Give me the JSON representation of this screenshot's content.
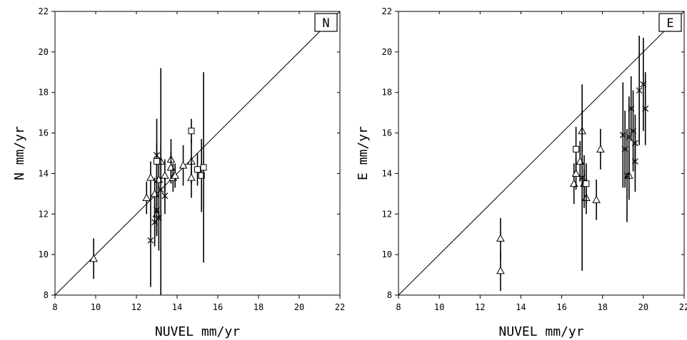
{
  "chart_data": [
    {
      "type": "scatter",
      "panel_label": "N",
      "xlabel": "NUVEL mm/yr",
      "ylabel": "N mm/yr",
      "xlim": [
        8,
        22
      ],
      "ylim": [
        8,
        22
      ],
      "x_ticks": [
        "8",
        "10",
        "12",
        "14",
        "16",
        "18",
        "20",
        "22"
      ],
      "y_ticks": [
        "8",
        "10",
        "12",
        "14",
        "16",
        "18",
        "20",
        "22"
      ],
      "reference_line": "y = x",
      "grid": false,
      "series": [
        {
          "marker": "triangle",
          "points": [
            {
              "x": 9.9,
              "y": 9.8,
              "err": 1.0
            },
            {
              "x": 12.5,
              "y": 12.8,
              "err": 0.8
            },
            {
              "x": 12.7,
              "y": 13.8,
              "err": 0.8
            },
            {
              "x": 12.9,
              "y": 13.0,
              "err": 0.8
            },
            {
              "x": 13.0,
              "y": 12.0,
              "err": 1.0
            },
            {
              "x": 13.1,
              "y": 13.7,
              "err": 0.9
            },
            {
              "x": 13.2,
              "y": 14.6,
              "err": 0.7
            },
            {
              "x": 13.4,
              "y": 13.9,
              "err": 0.8
            },
            {
              "x": 13.7,
              "y": 14.7,
              "err": 1.0
            },
            {
              "x": 13.7,
              "y": 14.3,
              "err": 0.8
            },
            {
              "x": 13.8,
              "y": 13.8,
              "err": 0.7
            },
            {
              "x": 13.9,
              "y": 13.9,
              "err": 0.6
            },
            {
              "x": 14.3,
              "y": 14.4,
              "err": 1.0
            },
            {
              "x": 14.7,
              "y": 14.6,
              "err": 1.1
            },
            {
              "x": 14.7,
              "y": 13.8,
              "err": 1.0
            }
          ]
        },
        {
          "marker": "cross",
          "points": [
            {
              "x": 12.7,
              "y": 10.7,
              "err": 2.3
            },
            {
              "x": 12.9,
              "y": 11.6,
              "err": 1.2
            },
            {
              "x": 13.0,
              "y": 14.9,
              "err": 1.8
            },
            {
              "x": 13.0,
              "y": 12.2,
              "err": 1.3
            },
            {
              "x": 13.1,
              "y": 11.8,
              "err": 1.6
            },
            {
              "x": 13.2,
              "y": 13.2,
              "err": 6.0
            },
            {
              "x": 13.4,
              "y": 12.9,
              "err": 0.9
            }
          ]
        },
        {
          "marker": "square",
          "points": [
            {
              "x": 13.0,
              "y": 14.6,
              "err": 0.9
            },
            {
              "x": 14.7,
              "y": 16.1,
              "err": 0.6
            },
            {
              "x": 15.0,
              "y": 14.2,
              "err": 0.8
            },
            {
              "x": 15.2,
              "y": 13.9,
              "err": 1.8
            },
            {
              "x": 15.3,
              "y": 14.3,
              "err": 4.7
            }
          ]
        }
      ]
    },
    {
      "type": "scatter",
      "panel_label": "E",
      "xlabel": "NUVEL mm/yr",
      "ylabel": "E mm/yr",
      "xlim": [
        8,
        22
      ],
      "ylim": [
        8,
        22
      ],
      "x_ticks": [
        "8",
        "10",
        "12",
        "14",
        "16",
        "18",
        "20",
        "22"
      ],
      "y_ticks": [
        "8",
        "10",
        "12",
        "14",
        "16",
        "18",
        "20",
        "22"
      ],
      "reference_line": "y = x",
      "grid": false,
      "series": [
        {
          "marker": "triangle",
          "points": [
            {
              "x": 13.0,
              "y": 10.8,
              "err": 1.0
            },
            {
              "x": 13.0,
              "y": 9.2,
              "err": 1.0
            },
            {
              "x": 16.6,
              "y": 13.5,
              "err": 1.0
            },
            {
              "x": 16.7,
              "y": 14.0,
              "err": 0.8
            },
            {
              "x": 16.9,
              "y": 14.6,
              "err": 1.0
            },
            {
              "x": 17.0,
              "y": 16.1,
              "err": 1.0
            },
            {
              "x": 17.1,
              "y": 13.5,
              "err": 0.7
            },
            {
              "x": 17.2,
              "y": 12.8,
              "err": 0.8
            },
            {
              "x": 17.7,
              "y": 12.7,
              "err": 1.0
            },
            {
              "x": 17.9,
              "y": 15.2,
              "err": 1.0
            },
            {
              "x": 19.3,
              "y": 13.9,
              "err": 1.2
            }
          ]
        },
        {
          "marker": "cross",
          "points": [
            {
              "x": 17.0,
              "y": 13.8,
              "err": 4.6
            },
            {
              "x": 17.1,
              "y": 13.6,
              "err": 1.3
            },
            {
              "x": 19.0,
              "y": 15.9,
              "err": 2.6
            },
            {
              "x": 19.1,
              "y": 15.2,
              "err": 1.9
            },
            {
              "x": 19.2,
              "y": 13.9,
              "err": 2.3
            },
            {
              "x": 19.3,
              "y": 15.8,
              "err": 2.0
            },
            {
              "x": 19.4,
              "y": 17.2,
              "err": 1.6
            },
            {
              "x": 19.5,
              "y": 16.1,
              "err": 2.0
            },
            {
              "x": 19.6,
              "y": 15.5,
              "err": 1.4
            },
            {
              "x": 19.6,
              "y": 14.6,
              "err": 1.5
            },
            {
              "x": 19.8,
              "y": 18.1,
              "err": 2.7
            },
            {
              "x": 20.0,
              "y": 18.4,
              "err": 2.3
            },
            {
              "x": 20.1,
              "y": 17.2,
              "err": 1.8
            }
          ]
        },
        {
          "marker": "square",
          "points": [
            {
              "x": 16.7,
              "y": 15.2,
              "err": 1.1
            },
            {
              "x": 17.2,
              "y": 13.5,
              "err": 1.0
            }
          ]
        }
      ]
    }
  ]
}
